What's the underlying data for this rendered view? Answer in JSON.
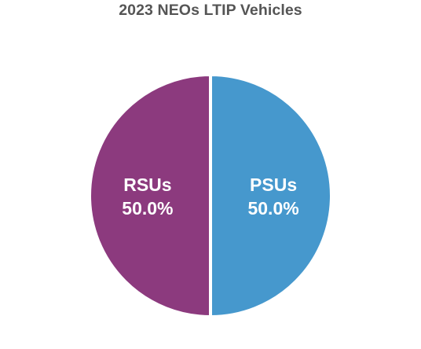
{
  "chart_data": {
    "type": "pie",
    "title": "2023 NEOs LTIP Vehicles",
    "slices": [
      {
        "label": "PSUs",
        "value": 50.0,
        "display": "50.0%",
        "color": "#4698CD"
      },
      {
        "label": "RSUs",
        "value": 50.0,
        "display": "50.0%",
        "color": "#8C3A7E"
      }
    ],
    "legend": "none"
  }
}
